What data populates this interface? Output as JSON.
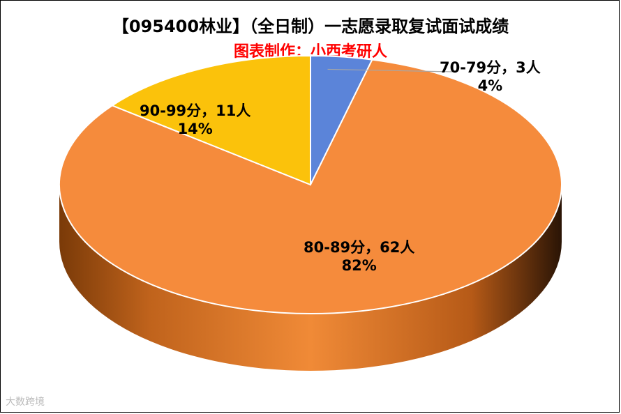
{
  "chart_data": {
    "type": "pie",
    "title": "【095400林业】（全日制）一志愿录取复试面试成绩",
    "subtitle": "图表制作：小西考研人",
    "slices": [
      {
        "label": "70-79分，3人",
        "value": 3,
        "percent_label": "4%",
        "color": "#5b84d9"
      },
      {
        "label": "80-89分，62人",
        "value": 62,
        "percent_label": "82%",
        "color": "#f58b3c"
      },
      {
        "label": "90-99分，11人",
        "value": 11,
        "percent_label": "14%",
        "color": "#fbc20b"
      }
    ],
    "style": "3d-pie"
  },
  "watermark": "大数跨境"
}
